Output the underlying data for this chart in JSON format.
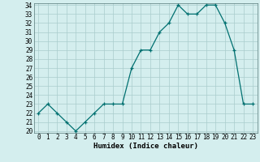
{
  "x": [
    0,
    1,
    2,
    3,
    4,
    5,
    6,
    7,
    8,
    9,
    10,
    11,
    12,
    13,
    14,
    15,
    16,
    17,
    18,
    19,
    20,
    21,
    22,
    23
  ],
  "y": [
    22,
    23,
    22,
    21,
    20,
    21,
    22,
    23,
    23,
    23,
    27,
    29,
    29,
    31,
    32,
    34,
    33,
    33,
    34,
    34,
    32,
    29,
    23,
    23
  ],
  "line_color": "#007070",
  "marker_color": "#007070",
  "bg_color": "#d4eeee",
  "grid_color": "#aacccc",
  "xlabel": "Humidex (Indice chaleur)",
  "ylim": [
    20,
    34
  ],
  "xlim": [
    -0.5,
    23.5
  ],
  "yticks": [
    20,
    21,
    22,
    23,
    24,
    25,
    26,
    27,
    28,
    29,
    30,
    31,
    32,
    33,
    34
  ],
  "xticks": [
    0,
    1,
    2,
    3,
    4,
    5,
    6,
    7,
    8,
    9,
    10,
    11,
    12,
    13,
    14,
    15,
    16,
    17,
    18,
    19,
    20,
    21,
    22,
    23
  ],
  "tick_fontsize": 5.5,
  "xlabel_fontsize": 6.5,
  "linewidth": 0.9,
  "markersize": 3.5
}
